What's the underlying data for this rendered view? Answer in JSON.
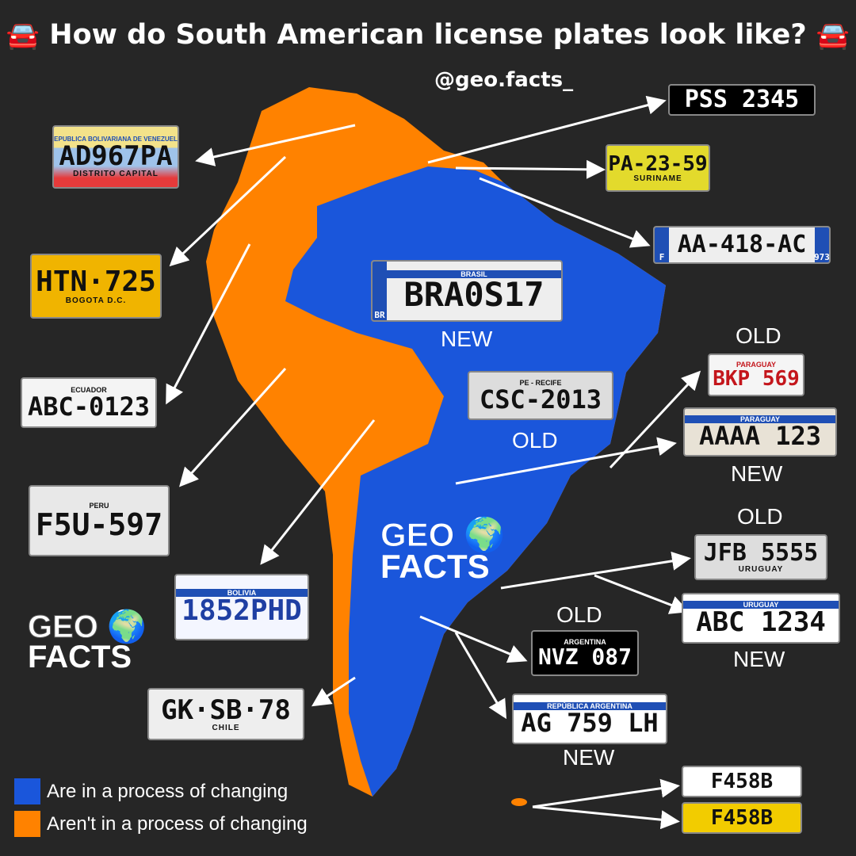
{
  "title": "How do South American license plates look like?",
  "handle": "@geo.facts_",
  "icons": {
    "left": "car-icon",
    "right": "car-icon"
  },
  "colors": {
    "changing": "#1a56db",
    "not_changing": "#ff8200",
    "background": "#262626"
  },
  "logo": {
    "line1": "GEO",
    "line2": "FACTS"
  },
  "legend": [
    {
      "label": "Are in a process of  changing",
      "color": "#1a56db"
    },
    {
      "label": "Aren't in a process of  changing",
      "color": "#ff8200"
    }
  ],
  "plates": {
    "venezuela": {
      "top": "REPUBLICA BOLIVARIANA DE VENEZUELA",
      "num": "AD967PA",
      "bot": "DISTRITO CAPITAL"
    },
    "guyana": {
      "num": "PSS 2345"
    },
    "suriname": {
      "num": "PA-23-59",
      "bot": "SURINAME"
    },
    "french_guiana": {
      "num": "AA-418-AC",
      "left": "F",
      "right": "973"
    },
    "colombia": {
      "num": "HTN·725",
      "bot": "BOGOTA D.C."
    },
    "ecuador": {
      "top": "ECUADOR",
      "num": "ABC-0123"
    },
    "peru": {
      "top": "PERU",
      "num": "F5U-597"
    },
    "bolivia": {
      "top": "BOLIVIA",
      "num": "1852PHD"
    },
    "chile": {
      "num": "GK·SB·78",
      "bot": "CHILE"
    },
    "brazil_new": {
      "top": "BRASIL",
      "num": "BRA0S17",
      "left": "BR"
    },
    "brazil_old": {
      "top": "PE - RECIFE",
      "num": "CSC-2013"
    },
    "paraguay_old": {
      "top": "PARAGUAY",
      "num": "BKP 569"
    },
    "paraguay_new": {
      "top": "PARAGUAY",
      "num": "AAAA 123"
    },
    "uruguay_old": {
      "num": "JFB 5555",
      "bot": "URUGUAY"
    },
    "uruguay_new": {
      "top": "URUGUAY",
      "num": "ABC 1234"
    },
    "argentina_old": {
      "top": "ARGENTINA",
      "num": "NVZ 087"
    },
    "argentina_new": {
      "top": "REPÚBLICA ARGENTINA",
      "num": "AG 759 LH"
    },
    "falklands_white": {
      "num": "F458B"
    },
    "falklands_yellow": {
      "num": "F458B"
    }
  },
  "labels": {
    "brazil_new": "NEW",
    "brazil_old": "OLD",
    "paraguay_old": "OLD",
    "paraguay_new": "NEW",
    "uruguay_old": "OLD",
    "uruguay_new": "NEW",
    "argentina_old": "OLD",
    "argentina_new": "NEW"
  }
}
